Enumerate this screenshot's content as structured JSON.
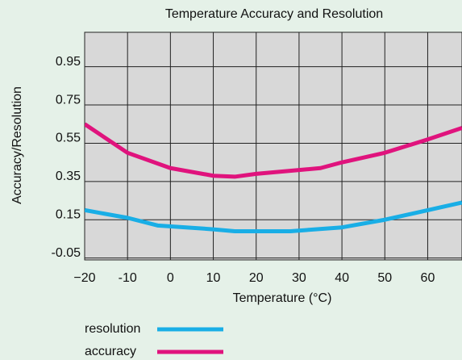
{
  "chart_data": {
    "type": "line",
    "title": "Temperature Accuracy and Resolution",
    "xlabel": "Temperature (°C)",
    "ylabel": "Accuracy/Resolution",
    "xlim": [
      -20,
      68
    ],
    "xticks": [
      {
        "value": -20,
        "label": "−20"
      },
      -10,
      0,
      10,
      20,
      30,
      40,
      50,
      60
    ],
    "ylim": [
      -0.06,
      1.13
    ],
    "yticks": [
      -0.05,
      0.15,
      0.35,
      0.55,
      0.75,
      0.95
    ],
    "grid": true,
    "series": [
      {
        "name": "resolution",
        "color": "#19aee6",
        "x": [
          -20,
          -10,
          -3,
          10,
          15,
          28,
          40,
          50,
          60,
          68
        ],
        "values": [
          0.2,
          0.16,
          0.12,
          0.1,
          0.09,
          0.09,
          0.11,
          0.15,
          0.2,
          0.24
        ]
      },
      {
        "name": "accuracy",
        "color": "#e0137d",
        "x": [
          -20,
          -10,
          0,
          10,
          15,
          20,
          30,
          35,
          40,
          50,
          60,
          68
        ],
        "values": [
          0.65,
          0.5,
          0.42,
          0.38,
          0.375,
          0.39,
          0.41,
          0.42,
          0.45,
          0.5,
          0.57,
          0.63
        ]
      }
    ]
  }
}
